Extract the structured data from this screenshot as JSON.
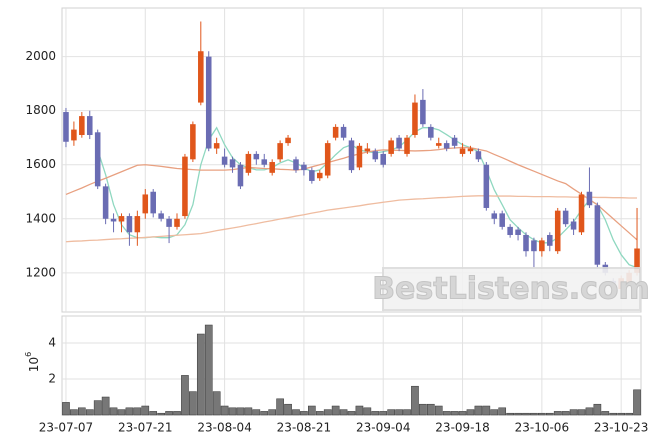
{
  "chart_data": {
    "type": "candlestick",
    "categories": [
      "23-07-07",
      null,
      null,
      null,
      null,
      null,
      null,
      null,
      null,
      null,
      "23-07-21",
      null,
      null,
      null,
      null,
      null,
      null,
      null,
      null,
      null,
      "23-08-04",
      null,
      null,
      null,
      null,
      null,
      null,
      null,
      null,
      null,
      "23-08-21",
      null,
      null,
      null,
      null,
      null,
      null,
      null,
      null,
      null,
      "23-09-04",
      null,
      null,
      null,
      null,
      null,
      null,
      null,
      null,
      null,
      "23-09-18",
      null,
      null,
      null,
      null,
      null,
      null,
      null,
      null,
      null,
      "23-10-06",
      null,
      null,
      null,
      null,
      null,
      null,
      null,
      null,
      null,
      "23-10-23",
      null,
      null
    ],
    "open": [
      1795,
      1690,
      1710,
      1780,
      1720,
      1520,
      1400,
      1390,
      1410,
      1350,
      1420,
      1500,
      1420,
      1400,
      1370,
      1410,
      1620,
      1830,
      2000,
      1660,
      1630,
      1620,
      1600,
      1570,
      1640,
      1620,
      1570,
      1620,
      1680,
      1620,
      1600,
      1580,
      1550,
      1560,
      1700,
      1740,
      1690,
      1590,
      1650,
      1650,
      1640,
      1640,
      1700,
      1640,
      1710,
      1840,
      1740,
      1670,
      1680,
      1700,
      1640,
      1650,
      1650,
      1600,
      1420,
      1420,
      1370,
      1360,
      1340,
      1320,
      1280,
      1340,
      1280,
      1430,
      1390,
      1350,
      1500,
      1450,
      1230,
      1170,
      1140,
      1160,
      1200
    ],
    "high": [
      1810,
      1760,
      1795,
      1800,
      1730,
      1530,
      1420,
      1420,
      1420,
      1430,
      1510,
      1510,
      1430,
      1410,
      1420,
      1640,
      1760,
      2130,
      2020,
      1700,
      1660,
      1630,
      1610,
      1650,
      1650,
      1640,
      1620,
      1690,
      1710,
      1630,
      1610,
      1590,
      1580,
      1690,
      1750,
      1750,
      1700,
      1680,
      1680,
      1660,
      1650,
      1700,
      1710,
      1710,
      1860,
      1880,
      1750,
      1700,
      1690,
      1710,
      1680,
      1670,
      1660,
      1610,
      1430,
      1430,
      1380,
      1370,
      1350,
      1330,
      1330,
      1350,
      1440,
      1440,
      1400,
      1500,
      1590,
      1460,
      1240,
      1180,
      1190,
      1210,
      1440
    ],
    "low": [
      1665,
      1670,
      1700,
      1695,
      1510,
      1380,
      1350,
      1350,
      1300,
      1300,
      1400,
      1405,
      1390,
      1310,
      1360,
      1400,
      1610,
      1820,
      1650,
      1640,
      1590,
      1570,
      1510,
      1560,
      1600,
      1590,
      1560,
      1610,
      1670,
      1570,
      1560,
      1530,
      1540,
      1550,
      1690,
      1690,
      1570,
      1580,
      1640,
      1610,
      1590,
      1630,
      1650,
      1630,
      1700,
      1740,
      1690,
      1660,
      1650,
      1660,
      1630,
      1640,
      1610,
      1430,
      1380,
      1360,
      1330,
      1320,
      1260,
      1220,
      1260,
      1280,
      1270,
      1370,
      1340,
      1340,
      1440,
      1220,
      1190,
      1140,
      1130,
      1150,
      1190
    ],
    "close": [
      1685,
      1730,
      1780,
      1710,
      1520,
      1400,
      1390,
      1410,
      1350,
      1410,
      1490,
      1420,
      1400,
      1370,
      1400,
      1630,
      1750,
      2020,
      1660,
      1680,
      1600,
      1590,
      1520,
      1640,
      1620,
      1600,
      1610,
      1680,
      1700,
      1580,
      1580,
      1540,
      1570,
      1680,
      1740,
      1700,
      1580,
      1670,
      1660,
      1620,
      1600,
      1690,
      1660,
      1700,
      1830,
      1750,
      1700,
      1680,
      1660,
      1670,
      1660,
      1660,
      1620,
      1440,
      1400,
      1370,
      1340,
      1340,
      1280,
      1280,
      1320,
      1300,
      1430,
      1380,
      1360,
      1490,
      1450,
      1230,
      1200,
      1160,
      1180,
      1200,
      1290
    ],
    "up_color": "#e0561b",
    "down_color": "#6a6cb3",
    "moving_averages": [
      {
        "color": "#8fd8c0",
        "values": [
          null,
          null,
          null,
          null,
          1655,
          1563,
          1452,
          1378,
          1341,
          1330,
          1330,
          1333,
          1330,
          1330,
          1341,
          1378,
          1452,
          1600,
          1692,
          1737,
          1674,
          1626,
          1600,
          1589,
          1581,
          1581,
          1589,
          1607,
          1618,
          1607,
          1589,
          1574,
          1581,
          1607,
          1637,
          1663,
          1674,
          1655,
          1648,
          1644,
          1648,
          1655,
          1666,
          1692,
          1722,
          1737,
          1737,
          1729,
          1711,
          1692,
          1674,
          1663,
          1648,
          1581,
          1507,
          1452,
          1396,
          1367,
          1341,
          1322,
          1311,
          1311,
          1330,
          1359,
          1389,
          1433,
          1470,
          1452,
          1396,
          1322,
          1267,
          1230,
          1219
        ]
      },
      {
        "color": "#e8a080",
        "values": [
          1490,
          1502,
          1514,
          1527,
          1539,
          1550,
          1562,
          1574,
          1586,
          1598,
          1600,
          1597,
          1594,
          1590,
          1586,
          1584,
          1582,
          1580,
          1580,
          1580,
          1580,
          1582,
          1586,
          1590,
          1588,
          1586,
          1585,
          1583,
          1582,
          1580,
          1584,
          1592,
          1600,
          1608,
          1616,
          1624,
          1633,
          1640,
          1647,
          1652,
          1655,
          1654,
          1653,
          1652,
          1651,
          1652,
          1653,
          1656,
          1660,
          1662,
          1664,
          1663,
          1657,
          1651,
          1638,
          1626,
          1613,
          1600,
          1588,
          1576,
          1564,
          1552,
          1540,
          1530,
          1510,
          1491,
          1471,
          1452,
          1426,
          1400,
          1374,
          1348,
          1322
        ]
      },
      {
        "color": "#efbca0",
        "values": [
          1315,
          1317,
          1318,
          1320,
          1321,
          1323,
          1325,
          1326,
          1328,
          1329,
          1331,
          1333,
          1335,
          1337,
          1339,
          1341,
          1343,
          1345,
          1350,
          1356,
          1361,
          1366,
          1371,
          1377,
          1382,
          1388,
          1393,
          1399,
          1404,
          1410,
          1415,
          1421,
          1426,
          1432,
          1436,
          1440,
          1444,
          1448,
          1453,
          1457,
          1461,
          1465,
          1469,
          1471,
          1473,
          1474,
          1476,
          1478,
          1479,
          1481,
          1483,
          1484,
          1485,
          1485,
          1484,
          1484,
          1484,
          1483,
          1483,
          1482,
          1482,
          1482,
          1481,
          1481,
          1480,
          1480,
          1480,
          1479,
          1479,
          1478,
          1478,
          1477,
          1477
        ]
      }
    ],
    "ylim": [
      1055,
      2180
    ],
    "yticks": [
      1200,
      1400,
      1600,
      1800,
      2000
    ],
    "grid": true,
    "volume": {
      "type": "bar",
      "color": "#777777",
      "values": [
        0.7,
        0.3,
        0.4,
        0.3,
        0.8,
        1.0,
        0.4,
        0.3,
        0.4,
        0.4,
        0.5,
        0.2,
        0.1,
        0.2,
        0.2,
        2.2,
        1.3,
        4.5,
        5.0,
        1.3,
        0.5,
        0.4,
        0.4,
        0.4,
        0.3,
        0.2,
        0.3,
        0.9,
        0.6,
        0.3,
        0.2,
        0.5,
        0.2,
        0.3,
        0.5,
        0.3,
        0.2,
        0.5,
        0.4,
        0.2,
        0.2,
        0.3,
        0.3,
        0.3,
        1.6,
        0.6,
        0.6,
        0.5,
        0.2,
        0.2,
        0.2,
        0.3,
        0.5,
        0.5,
        0.3,
        0.4,
        0.1,
        0.1,
        0.1,
        0.1,
        0.1,
        0.1,
        0.2,
        0.2,
        0.3,
        0.3,
        0.4,
        0.6,
        0.2,
        0.1,
        0.1,
        0.1,
        1.4
      ],
      "ylim": [
        0,
        5.5
      ],
      "yticks": [
        2,
        4
      ],
      "scale_label": {
        "base": "10",
        "exponent": "6"
      }
    },
    "watermark": "BestListens.com"
  }
}
